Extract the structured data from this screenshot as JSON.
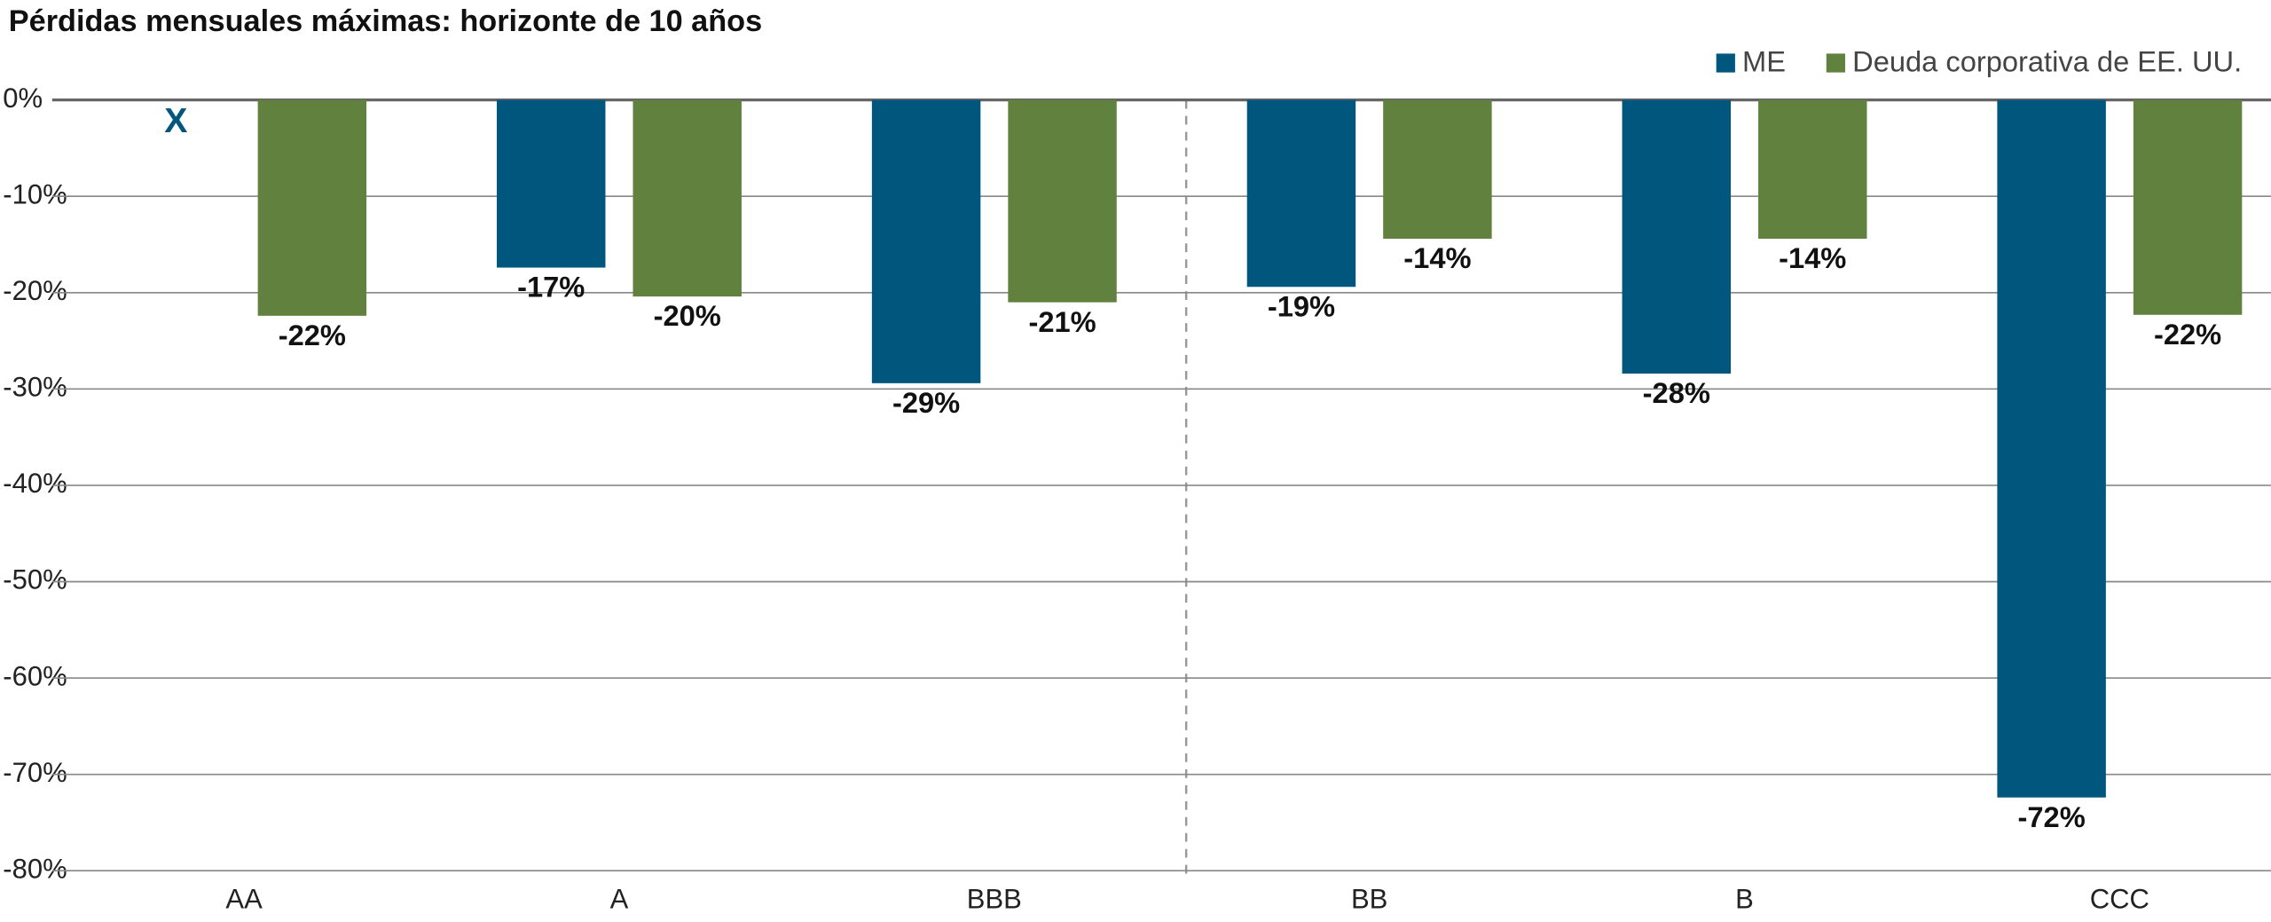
{
  "chart_data": {
    "type": "bar",
    "title": "Pérdidas mensuales máximas: horizonte de 10 años",
    "categories": [
      "AA",
      "A",
      "BBB",
      "BB",
      "B",
      "CCC"
    ],
    "series": [
      {
        "name": "ME",
        "color": "#00567d",
        "values": [
          null,
          -17.4,
          -29.4,
          -19.4,
          -28.4,
          -72.4
        ],
        "value_labels": [
          null,
          "-17%",
          "-29%",
          "-19%",
          "-28%",
          "-72%"
        ]
      },
      {
        "name": "Deuda corporativa de EE. UU.",
        "color": "#61823e",
        "values": [
          -22.4,
          -20.4,
          -21.0,
          -14.4,
          -14.4,
          -22.3
        ],
        "value_labels": [
          "-22%",
          "-20%",
          "-21%",
          "-14%",
          "-14%",
          "-22%"
        ]
      }
    ],
    "annotations": [
      {
        "category": "AA",
        "series": "ME",
        "text": "X"
      }
    ],
    "ylim": [
      -80,
      0
    ],
    "yticks": [
      {
        "value": 0,
        "label": "0%"
      },
      {
        "value": -10,
        "label": "-10%"
      },
      {
        "value": -20,
        "label": "-20%"
      },
      {
        "value": -30,
        "label": "-30%"
      },
      {
        "value": -40,
        "label": "-40%"
      },
      {
        "value": -50,
        "label": "-50%"
      },
      {
        "value": -60,
        "label": "-60%"
      },
      {
        "value": -70,
        "label": "-70%"
      },
      {
        "value": -80,
        "label": "-80%"
      }
    ],
    "grid": true,
    "legend": "top-right"
  }
}
